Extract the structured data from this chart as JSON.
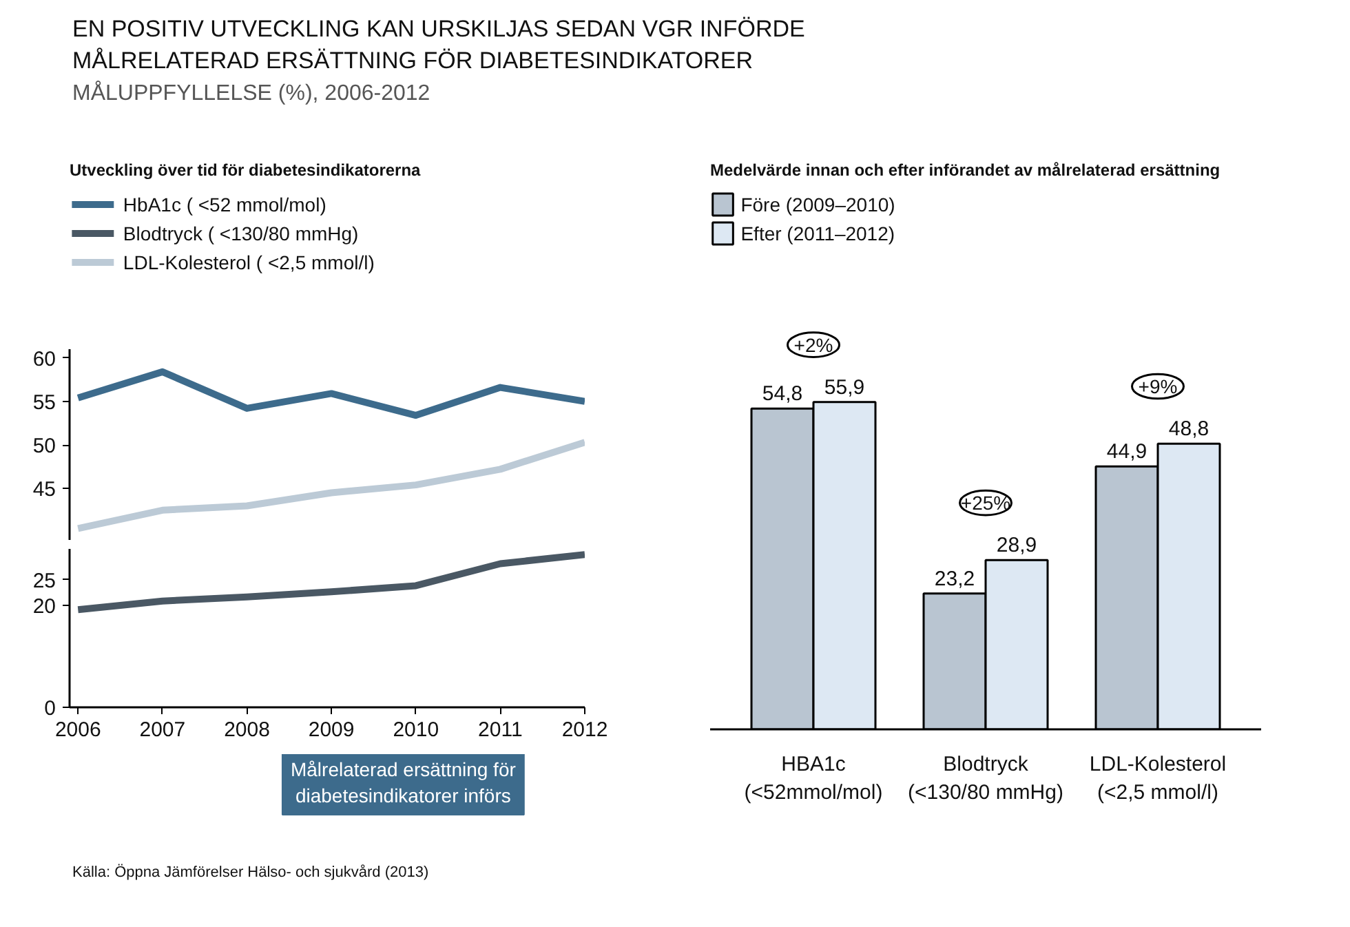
{
  "chart_data": [
    {
      "type": "other",
      "title": "EN POSITIV UTVECKLING KAN URSKILJAS SEDAN VGR INFÖRDE\nMÅLRELATERAD ERSÄTTNING FÖR DIABETESINDIKATORER",
      "subtitle": "MÅLUPPFYLLELSE (%), 2006-2012",
      "annotations": [
        "Källa: Öppna Jämförelser Hälso- och sjukvård (2013)"
      ]
    },
    {
      "type": "line",
      "title": "Utveckling över tid för diabetesindikatorerna",
      "x": [
        2006,
        2007,
        2008,
        2009,
        2010,
        2011,
        2012
      ],
      "series": [
        {
          "name": "HbA1c ( <52 mmol/mol)",
          "color": "#3d6b8c",
          "values": [
            55.4,
            58.4,
            54.2,
            55.9,
            53.4,
            56.6,
            55.0
          ]
        },
        {
          "name": "Blodtryck ( <130/80 mmHg)",
          "color": "#4a5864",
          "values": [
            null,
            null,
            null,
            null,
            null,
            null,
            null
          ]
        },
        {
          "name": "LDL-Kolesterol ( <2,5 mmol/l)",
          "color": "#bccad6",
          "values": [
            40.4,
            42.5,
            43.0,
            44.5,
            45.4,
            47.2,
            50.3
          ]
        }
      ],
      "xlim": [
        2005.9,
        2012
      ],
      "ylim": [
        39,
        61
      ],
      "yticks": [
        45,
        50,
        55,
        60
      ],
      "tick_labels": "y",
      "legend": "top left",
      "grid": false,
      "marker": "none",
      "line_style": "solid"
    },
    {
      "type": "line",
      "x": [
        2006,
        2007,
        2008,
        2009,
        2010,
        2011,
        2012
      ],
      "series": [
        {
          "color": "#4a5864",
          "values": [
            19.1,
            20.8,
            21.6,
            22.6,
            23.8,
            28.1,
            29.9
          ]
        }
      ],
      "xlim": [
        2005.9,
        2012
      ],
      "xticks": [
        2006,
        2007,
        2008,
        2009,
        2010,
        2011,
        2012
      ],
      "ylim": [
        0,
        31
      ],
      "yticks": [
        0,
        20,
        25
      ],
      "grid": false,
      "marker": "none",
      "line_style": "solid",
      "annotations": [
        "Målrelaterad ersättning för\ndiabetesindikatorer införs"
      ]
    },
    {
      "type": "bar",
      "title": "Medelvärde innan och efter införandet av målrelaterad ersättning",
      "categories": [
        "HBA1c\n(<52mmol/mol)",
        "Blodtryck\n(<130/80 mmHg)",
        "LDL-Kolesterol\n(<2,5 mmol/l)"
      ],
      "series": [
        {
          "name": "Före (2009–2010)",
          "color": "#b9c5d1",
          "values": [
            54.8,
            23.2,
            44.9
          ],
          "value_labels": [
            "54,8",
            "23,2",
            "44,9"
          ]
        },
        {
          "name": "Efter (2011–2012)",
          "color": "#dde8f3",
          "values": [
            55.9,
            28.9,
            48.8
          ],
          "value_labels": [
            "55,9",
            "28,9",
            "48,8"
          ]
        }
      ],
      "tick_labels": "x",
      "legend": "top left",
      "grid": false,
      "annotations": [
        "+2%",
        "+25%",
        "+9%"
      ]
    }
  ]
}
